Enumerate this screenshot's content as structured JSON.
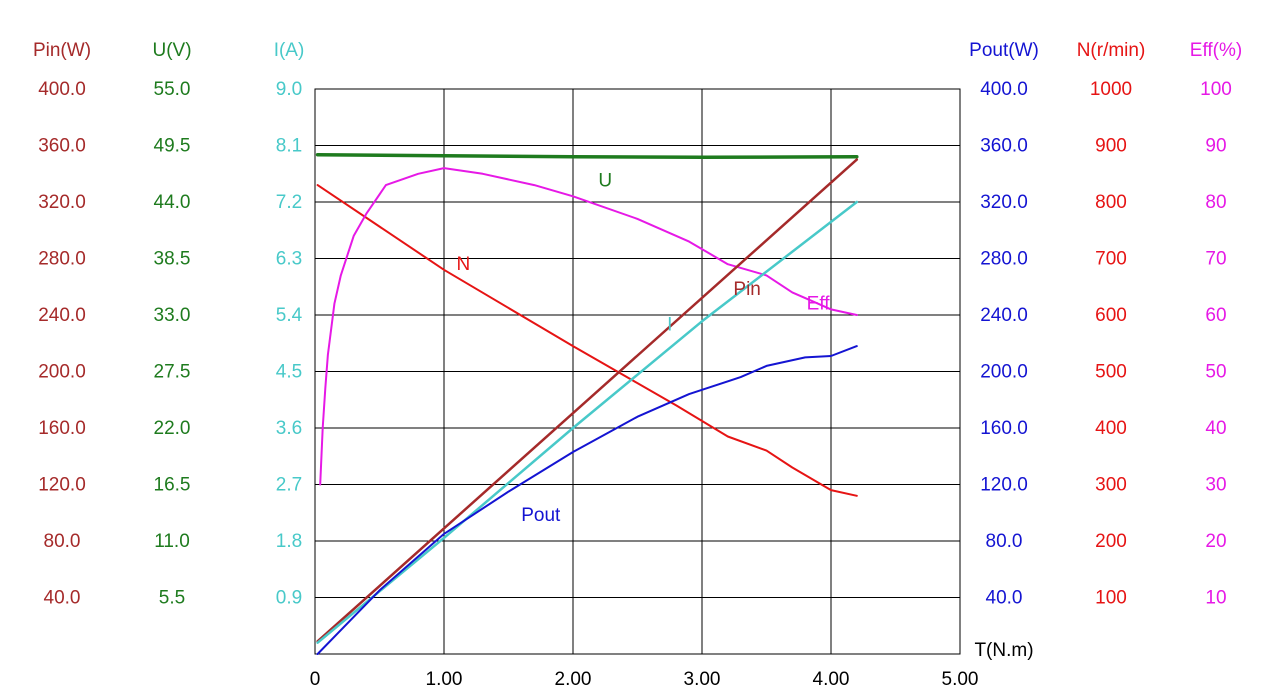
{
  "chart_data": {
    "type": "line",
    "xlabel": "T(N.m)",
    "x_ticks": [
      "0",
      "1.00",
      "2.00",
      "3.00",
      "4.00",
      "5.00"
    ],
    "xlim": [
      0,
      5
    ],
    "grid": true,
    "axes": {
      "left": [
        {
          "key": "pin",
          "label": "Pin(W)",
          "color": "#A52A2A",
          "ticks": [
            "400.0",
            "360.0",
            "320.0",
            "280.0",
            "240.0",
            "200.0",
            "160.0",
            "120.0",
            "80.0",
            "40.0"
          ],
          "range": [
            0,
            400
          ]
        },
        {
          "key": "u",
          "label": "U(V)",
          "color": "#1E7B1E",
          "ticks": [
            "55.0",
            "49.5",
            "44.0",
            "38.5",
            "33.0",
            "27.5",
            "22.0",
            "16.5",
            "11.0",
            "5.5"
          ],
          "range": [
            0,
            55
          ]
        },
        {
          "key": "i",
          "label": "I(A)",
          "color": "#48C9C9",
          "ticks": [
            "9.0",
            "8.1",
            "7.2",
            "6.3",
            "5.4",
            "4.5",
            "3.6",
            "2.7",
            "1.8",
            "0.9"
          ],
          "range": [
            0,
            9
          ]
        }
      ],
      "right": [
        {
          "key": "pout",
          "label": "Pout(W)",
          "color": "#1414D2",
          "ticks": [
            "400.0",
            "360.0",
            "320.0",
            "280.0",
            "240.0",
            "200.0",
            "160.0",
            "120.0",
            "80.0",
            "40.0"
          ],
          "range": [
            0,
            400
          ]
        },
        {
          "key": "n",
          "label": "N(r/min)",
          "color": "#E61414",
          "ticks": [
            "1000",
            "900",
            "800",
            "700",
            "600",
            "500",
            "400",
            "300",
            "200",
            "100"
          ],
          "range": [
            0,
            1000
          ]
        },
        {
          "key": "eff",
          "label": "Eff(%)",
          "color": "#E619E6",
          "ticks": [
            "100",
            "90",
            "80",
            "70",
            "60",
            "50",
            "40",
            "30",
            "20",
            "10"
          ],
          "range": [
            0,
            100
          ]
        }
      ]
    },
    "series": [
      {
        "name": "U",
        "axis": "u",
        "color": "#1E7B1E",
        "width": 3.5,
        "x": [
          0.02,
          1.0,
          2.0,
          3.0,
          4.2
        ],
        "y": [
          48.6,
          48.5,
          48.4,
          48.35,
          48.4
        ]
      },
      {
        "name": "N",
        "axis": "n",
        "color": "#E61414",
        "width": 2,
        "x": [
          0.02,
          1.0,
          2.0,
          2.8,
          3.2,
          3.5,
          3.7,
          4.0,
          4.2
        ],
        "y": [
          830,
          680,
          545,
          440,
          385,
          360,
          330,
          290,
          280
        ]
      },
      {
        "name": "Eff",
        "axis": "eff",
        "color": "#E619E6",
        "width": 2,
        "x": [
          0.04,
          0.06,
          0.08,
          0.1,
          0.15,
          0.2,
          0.3,
          0.4,
          0.55,
          0.8,
          1.0,
          1.3,
          1.7,
          2.0,
          2.5,
          2.9,
          3.2,
          3.5,
          3.7,
          3.9,
          4.0,
          4.2
        ],
        "y": [
          30,
          40,
          47,
          53,
          62,
          67,
          74,
          78,
          83,
          85,
          86,
          85,
          83,
          81,
          77,
          73,
          69,
          67,
          64,
          62,
          61,
          60
        ]
      },
      {
        "name": "Pin",
        "axis": "pin",
        "color": "#A52A2A",
        "width": 2.5,
        "x": [
          0.02,
          4.2
        ],
        "y": [
          9,
          350
        ]
      },
      {
        "name": "I",
        "axis": "i",
        "color": "#48C9C9",
        "width": 2.5,
        "x": [
          0.02,
          1.0,
          2.0,
          3.0,
          4.2
        ],
        "y": [
          0.18,
          1.85,
          3.6,
          5.3,
          7.2
        ]
      },
      {
        "name": "Pout",
        "axis": "pout",
        "color": "#1414D2",
        "width": 2,
        "x": [
          0.02,
          0.5,
          1.0,
          1.5,
          2.0,
          2.5,
          2.9,
          3.3,
          3.5,
          3.8,
          4.0,
          4.2
        ],
        "y": [
          0,
          45,
          85,
          115,
          143,
          168,
          184,
          196,
          204,
          210,
          211,
          218
        ]
      }
    ],
    "annotations": [
      {
        "text": "U",
        "color": "#1E7B1E",
        "x": 2.25,
        "axis": "u",
        "y": 45.5
      },
      {
        "text": "N",
        "color": "#E61414",
        "x": 1.15,
        "axis": "n",
        "y": 680
      },
      {
        "text": "Pin",
        "color": "#A52A2A",
        "x": 3.35,
        "axis": "pin",
        "y": 254
      },
      {
        "text": "Eff",
        "color": "#E619E6",
        "x": 3.9,
        "axis": "eff",
        "y": 61
      },
      {
        "text": "I",
        "color": "#48C9C9",
        "x": 2.75,
        "axis": "i",
        "y": 5.15
      },
      {
        "text": "Pout",
        "color": "#1414D2",
        "x": 1.75,
        "axis": "pout",
        "y": 94
      }
    ]
  }
}
